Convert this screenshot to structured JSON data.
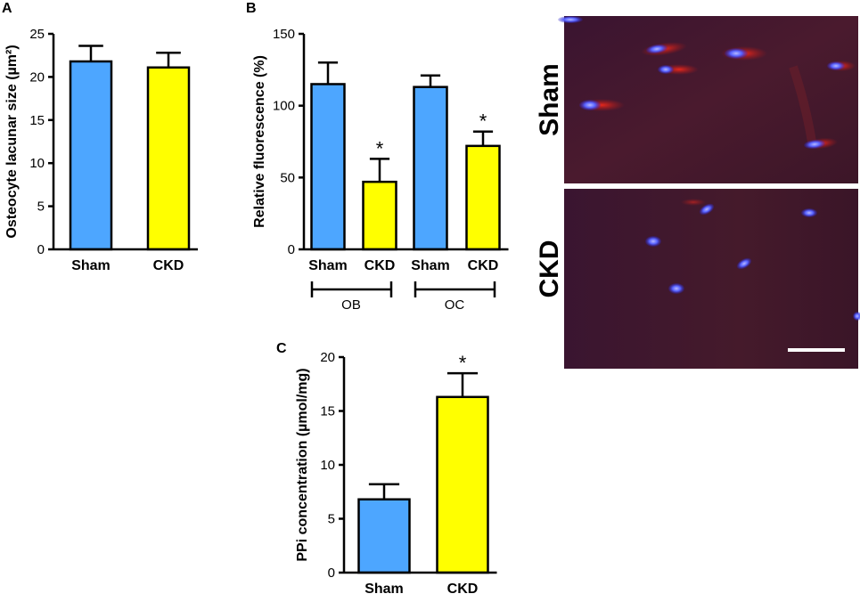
{
  "colors": {
    "sham": "#4da6ff",
    "ckd": "#ffff00",
    "outline": "#000000"
  },
  "panels": {
    "a": {
      "letter": "A"
    },
    "b": {
      "letter": "B",
      "groups": [
        "OB",
        "OC"
      ]
    },
    "c": {
      "letter": "C"
    },
    "micro": {
      "labels": [
        "Sham",
        "CKD"
      ]
    }
  },
  "chart_data": [
    {
      "id": "a",
      "type": "bar",
      "categories": [
        "Sham",
        "CKD"
      ],
      "values": [
        21.8,
        21.1
      ],
      "errors": [
        1.8,
        1.7
      ],
      "ylabel": "Osteocyte lacunar size (µm²)",
      "ylim": [
        0,
        25
      ],
      "yticks": [
        0,
        5,
        10,
        15,
        20,
        25
      ],
      "significance": [
        "",
        ""
      ]
    },
    {
      "id": "b",
      "type": "bar",
      "categories": [
        "Sham",
        "CKD",
        "Sham",
        "CKD"
      ],
      "groups": [
        "OB",
        "OB",
        "OC",
        "OC"
      ],
      "values": [
        115,
        47,
        113,
        72
      ],
      "errors": [
        15,
        16,
        8,
        10
      ],
      "ylabel": "Relative fluorescence (%)",
      "ylim": [
        0,
        150
      ],
      "yticks": [
        0,
        50,
        100,
        150
      ],
      "significance": [
        "",
        "*",
        "",
        "*"
      ]
    },
    {
      "id": "c",
      "type": "bar",
      "categories": [
        "Sham",
        "CKD"
      ],
      "values": [
        6.8,
        16.3
      ],
      "errors": [
        1.4,
        2.2
      ],
      "ylabel": "PPi concentration (µmol/mg)",
      "ylim": [
        0,
        20
      ],
      "yticks": [
        0,
        5,
        10,
        15,
        20
      ],
      "significance": [
        "",
        "*"
      ]
    }
  ]
}
